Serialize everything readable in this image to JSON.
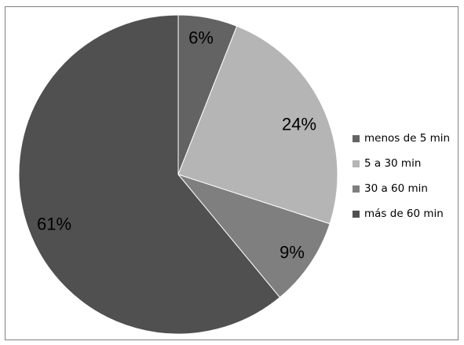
{
  "chart_data": {
    "type": "pie",
    "title": "",
    "categories": [
      "menos de 5 min",
      "5 a 30 min",
      "30 a 60 min",
      "más de 60 min"
    ],
    "values": [
      6,
      24,
      9,
      61
    ],
    "value_labels": [
      "6%",
      "24%",
      "9%",
      "61%"
    ],
    "colors": [
      "#636363",
      "#b5b5b5",
      "#7f7f7f",
      "#505050"
    ],
    "legend_position": "right"
  }
}
